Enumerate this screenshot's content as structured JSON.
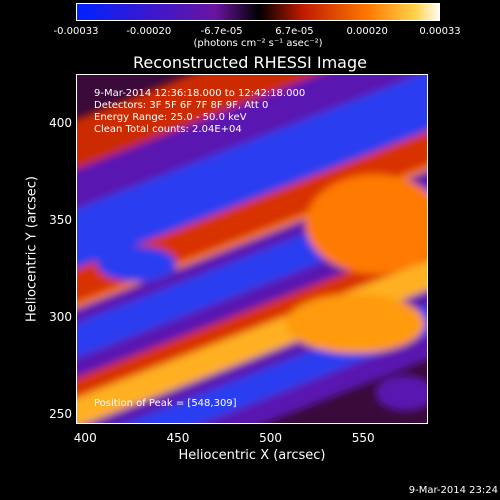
{
  "colorbar": {
    "ticks": [
      "-0.00033",
      "-0.00020",
      "-6.7e-05",
      "6.7e-05",
      "0.00020",
      "0.00033"
    ],
    "unit_label": "(photons cm⁻² s⁻¹ asec⁻²)"
  },
  "chart_data": {
    "type": "heatmap",
    "title": "Reconstructed RHESSI Image",
    "xlabel": "Heliocentric X (arcsec)",
    "ylabel": "Heliocentric Y (arcsec)",
    "xlim": [
      395,
      585
    ],
    "ylim": [
      245,
      425
    ],
    "x_ticks": [
      400,
      450,
      500,
      550
    ],
    "y_ticks": [
      250,
      300,
      350,
      400
    ],
    "color_range": [
      -0.00033,
      0.00033
    ],
    "colormap": [
      "#0022ff",
      "#5511aa",
      "#000000",
      "#cc2200",
      "#ff6600",
      "#ffcc00",
      "#ffffff"
    ],
    "peak": [
      548,
      309
    ]
  },
  "info": {
    "time": "9-Mar-2014 12:36:18.000 to 12:42:18.000",
    "detectors": "Detectors: 3F 5F 6F 7F 8F 9F, Att 0",
    "energy": "Energy Range: 25.0 - 50.0 keV",
    "method": "Clean     Total counts: 2.04E+04",
    "peak_label": "Position of Peak = [548,309]"
  },
  "datestamp": "9-Mar-2014 23:24"
}
